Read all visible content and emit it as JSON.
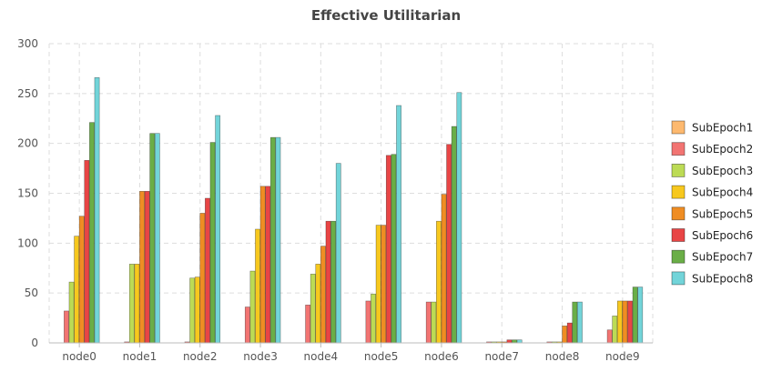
{
  "chart_data": {
    "type": "bar",
    "title": "Effective Utilitarian",
    "xlabel": "",
    "ylabel": "",
    "ylim": [
      0,
      300
    ],
    "yticks": [
      0,
      50,
      100,
      150,
      200,
      250,
      300
    ],
    "grid": true,
    "legend_position": "right",
    "categories": [
      "node0",
      "node1",
      "node2",
      "node3",
      "node4",
      "node5",
      "node6",
      "node7",
      "node8",
      "node9"
    ],
    "series": [
      {
        "name": "SubEpoch1",
        "color": "#FDB96F",
        "values": [
          0,
          0,
          0,
          0,
          0,
          0,
          0,
          0,
          0,
          0
        ]
      },
      {
        "name": "SubEpoch2",
        "color": "#F27472",
        "values": [
          32,
          1,
          1,
          36,
          38,
          42,
          41,
          1,
          1,
          13
        ]
      },
      {
        "name": "SubEpoch3",
        "color": "#BCDB55",
        "values": [
          61,
          79,
          65,
          72,
          69,
          49,
          41,
          1,
          1,
          27
        ]
      },
      {
        "name": "SubEpoch4",
        "color": "#F7C81E",
        "values": [
          107,
          79,
          66,
          114,
          79,
          118,
          122,
          1,
          1,
          42
        ]
      },
      {
        "name": "SubEpoch5",
        "color": "#EF8D23",
        "values": [
          127,
          152,
          130,
          157,
          97,
          118,
          149,
          1,
          17,
          42
        ]
      },
      {
        "name": "SubEpoch6",
        "color": "#E84545",
        "values": [
          183,
          152,
          145,
          157,
          122,
          188,
          199,
          3,
          20,
          42
        ]
      },
      {
        "name": "SubEpoch7",
        "color": "#6AAE47",
        "values": [
          221,
          210,
          201,
          206,
          122,
          189,
          217,
          3,
          41,
          56
        ]
      },
      {
        "name": "SubEpoch8",
        "color": "#72D4D9",
        "values": [
          266,
          210,
          228,
          206,
          180,
          238,
          251,
          3,
          41,
          56
        ]
      }
    ]
  }
}
